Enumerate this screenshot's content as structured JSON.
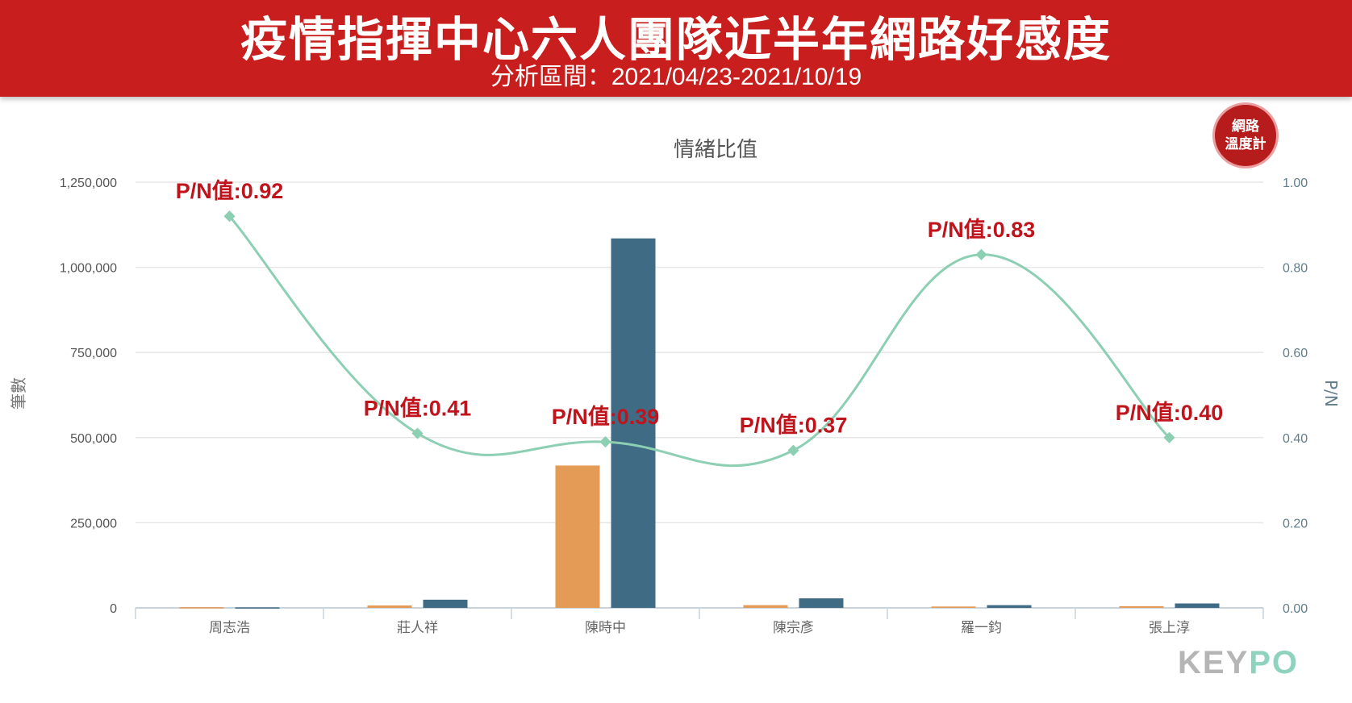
{
  "header": {
    "title": "疫情指揮中心六人團隊近半年網路好感度",
    "subtitle": "分析區間：2021/04/23-2021/10/19"
  },
  "badge": {
    "line1": "網路",
    "line2": "溫度計"
  },
  "watermark": {
    "key": "KEY",
    "po": "PO"
  },
  "colors": {
    "banner": "#c81e1e",
    "positive": "#e39b55",
    "negative": "#3f6b85",
    "line": "#8dcfb3",
    "annotation": "#c0141d"
  },
  "chart_data": {
    "type": "bar",
    "title": "情緒比值",
    "categories": [
      "周志浩",
      "莊人祥",
      "陳時中",
      "陳宗彥",
      "羅一鈞",
      "張上淳"
    ],
    "series": [
      {
        "kind": "bar",
        "axis": "left",
        "color": "#e39b55",
        "values": [
          2000,
          7000,
          418000,
          8000,
          4000,
          5000
        ]
      },
      {
        "kind": "bar",
        "axis": "left",
        "color": "#3f6b85",
        "values": [
          1500,
          24000,
          1085000,
          28000,
          8000,
          13000
        ]
      },
      {
        "kind": "line",
        "axis": "right",
        "color": "#8dcfb3",
        "values": [
          0.92,
          0.41,
          0.39,
          0.37,
          0.83,
          0.4
        ]
      }
    ],
    "annotations": [
      "P/N值:0.92",
      "P/N值:0.41",
      "P/N值:0.39",
      "P/N值:0.37",
      "P/N值:0.83",
      "P/N值:0.40"
    ],
    "ylabel": "筆數",
    "ylim": [
      0,
      1250000
    ],
    "yticks": [
      "0",
      "250,000",
      "500,000",
      "750,000",
      "1,000,000",
      "1,250,000"
    ],
    "y2label": "P/N",
    "y2lim": [
      0,
      1
    ],
    "y2ticks": [
      "0.00",
      "0.20",
      "0.40",
      "0.60",
      "0.80",
      "1.00"
    ],
    "grid": true
  }
}
